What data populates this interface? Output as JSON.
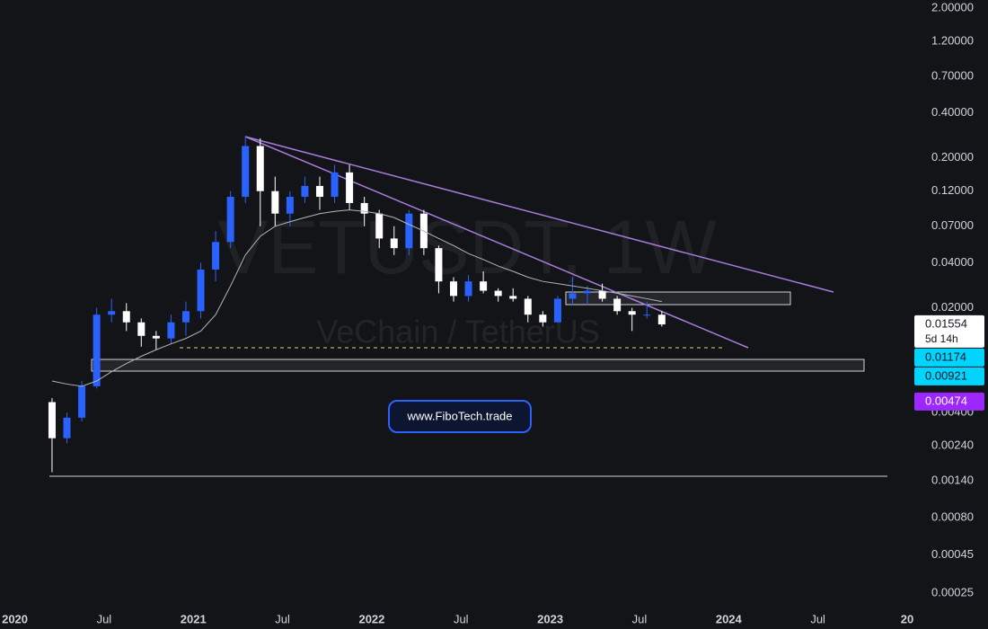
{
  "chart_data": {
    "type": "candlestick",
    "title": "VETUSDT, 1W",
    "subtitle": "VeChain / TetherUS",
    "annotations": [
      "www.FiboTech.trade"
    ],
    "countdown": "5d 14h",
    "log_scale": true,
    "up_color": "#2962ff",
    "down_color": "#ffffff",
    "x": [
      "2020-03",
      "2020-04",
      "2020-05",
      "2020-06",
      "2020-07",
      "2020-08",
      "2020-09",
      "2020-10",
      "2020-11",
      "2020-12",
      "2021-01",
      "2021-02",
      "2021-03",
      "2021-04",
      "2021-05",
      "2021-06",
      "2021-07",
      "2021-08",
      "2021-09",
      "2021-10",
      "2021-11",
      "2021-12",
      "2022-01",
      "2022-02",
      "2022-03",
      "2022-04",
      "2022-05",
      "2022-06",
      "2022-07",
      "2022-08",
      "2022-09",
      "2022-10",
      "2022-11",
      "2022-12",
      "2023-01",
      "2023-02",
      "2023-03",
      "2023-04",
      "2023-05",
      "2023-06",
      "2023-07",
      "2023-08"
    ],
    "open": [
      0.0047,
      0.0027,
      0.0037,
      0.006,
      0.018,
      0.019,
      0.016,
      0.013,
      0.0125,
      0.016,
      0.019,
      0.036,
      0.055,
      0.11,
      0.24,
      0.12,
      0.085,
      0.11,
      0.13,
      0.11,
      0.16,
      0.1,
      0.085,
      0.058,
      0.05,
      0.085,
      0.05,
      0.03,
      0.024,
      0.03,
      0.026,
      0.024,
      0.023,
      0.018,
      0.016,
      0.023,
      0.025,
      0.026,
      0.023,
      0.019,
      0.018,
      0.018
    ],
    "high": [
      0.005,
      0.004,
      0.0065,
      0.02,
      0.023,
      0.0215,
      0.017,
      0.014,
      0.018,
      0.022,
      0.04,
      0.065,
      0.12,
      0.28,
      0.27,
      0.15,
      0.12,
      0.15,
      0.15,
      0.18,
      0.18,
      0.11,
      0.09,
      0.07,
      0.09,
      0.09,
      0.052,
      0.032,
      0.033,
      0.035,
      0.027,
      0.027,
      0.024,
      0.019,
      0.024,
      0.032,
      0.028,
      0.029,
      0.024,
      0.02,
      0.022,
      0.019
    ],
    "low": [
      0.0016,
      0.0025,
      0.0035,
      0.0058,
      0.016,
      0.014,
      0.011,
      0.0105,
      0.0115,
      0.013,
      0.017,
      0.03,
      0.05,
      0.1,
      0.07,
      0.07,
      0.07,
      0.1,
      0.09,
      0.1,
      0.09,
      0.07,
      0.05,
      0.045,
      0.045,
      0.045,
      0.025,
      0.022,
      0.022,
      0.025,
      0.022,
      0.022,
      0.016,
      0.015,
      0.016,
      0.021,
      0.021,
      0.022,
      0.018,
      0.014,
      0.017,
      0.015
    ],
    "close": [
      0.0027,
      0.0037,
      0.006,
      0.018,
      0.019,
      0.016,
      0.013,
      0.0125,
      0.016,
      0.019,
      0.036,
      0.055,
      0.11,
      0.24,
      0.12,
      0.085,
      0.11,
      0.13,
      0.11,
      0.16,
      0.1,
      0.085,
      0.058,
      0.05,
      0.085,
      0.05,
      0.03,
      0.024,
      0.03,
      0.026,
      0.024,
      0.023,
      0.018,
      0.016,
      0.023,
      0.025,
      0.026,
      0.023,
      0.019,
      0.018,
      0.018,
      0.0155
    ],
    "moving_average": {
      "color": "#b2b5be",
      "values": [
        0.0065,
        0.0062,
        0.006,
        0.0065,
        0.0075,
        0.0085,
        0.0095,
        0.0105,
        0.0115,
        0.0125,
        0.014,
        0.018,
        0.028,
        0.045,
        0.06,
        0.07,
        0.075,
        0.08,
        0.085,
        0.088,
        0.09,
        0.088,
        0.085,
        0.08,
        0.072,
        0.065,
        0.058,
        0.052,
        0.046,
        0.042,
        0.038,
        0.035,
        0.032,
        0.03,
        0.029,
        0.028,
        0.027,
        0.026,
        0.025,
        0.024,
        0.023,
        0.022
      ]
    },
    "price_labels": [
      {
        "value": 0.01554,
        "color": "#ffffff",
        "text_color": "#131722"
      },
      {
        "value": 0.01174,
        "color": "#00d4ff",
        "text_color": "#131722"
      },
      {
        "value": 0.00921,
        "color": "#00d4ff",
        "text_color": "#131722"
      },
      {
        "value": 0.00474,
        "color": "#9c27ff",
        "text_color": "#ffffff"
      }
    ],
    "xlim": [
      "2019-12",
      "2025-01"
    ],
    "xticks": [
      {
        "value": "2020-01",
        "label": "2020"
      },
      {
        "value": "2020-07",
        "label": "Jul"
      },
      {
        "value": "2021-01",
        "label": "2021"
      },
      {
        "value": "2021-07",
        "label": "Jul"
      },
      {
        "value": "2022-01",
        "label": "2022"
      },
      {
        "value": "2022-07",
        "label": "Jul"
      },
      {
        "value": "2023-01",
        "label": "2023"
      },
      {
        "value": "2023-07",
        "label": "Jul"
      },
      {
        "value": "2024-01",
        "label": "2024"
      },
      {
        "value": "2024-07",
        "label": "Jul"
      },
      {
        "value": "2025-01",
        "label": "20"
      }
    ],
    "ylim": [
      0.00019,
      2.26
    ],
    "yticks": [
      {
        "value": 2,
        "label": "2.00000"
      },
      {
        "value": 1.2,
        "label": "1.20000"
      },
      {
        "value": 0.7,
        "label": "0.70000"
      },
      {
        "value": 0.4,
        "label": "0.40000"
      },
      {
        "value": 0.2,
        "label": "0.20000"
      },
      {
        "value": 0.12,
        "label": "0.12000"
      },
      {
        "value": 0.07,
        "label": "0.07000"
      },
      {
        "value": 0.04,
        "label": "0.04000"
      },
      {
        "value": 0.02,
        "label": "0.02000"
      },
      {
        "value": 0.004,
        "label": "0.00400"
      },
      {
        "value": 0.0024,
        "label": "0.00240"
      },
      {
        "value": 0.0014,
        "label": "0.00140"
      },
      {
        "value": 0.0008,
        "label": "0.00080"
      },
      {
        "value": 0.00045,
        "label": "0.00045"
      },
      {
        "value": 0.00025,
        "label": "0.00025"
      }
    ]
  }
}
